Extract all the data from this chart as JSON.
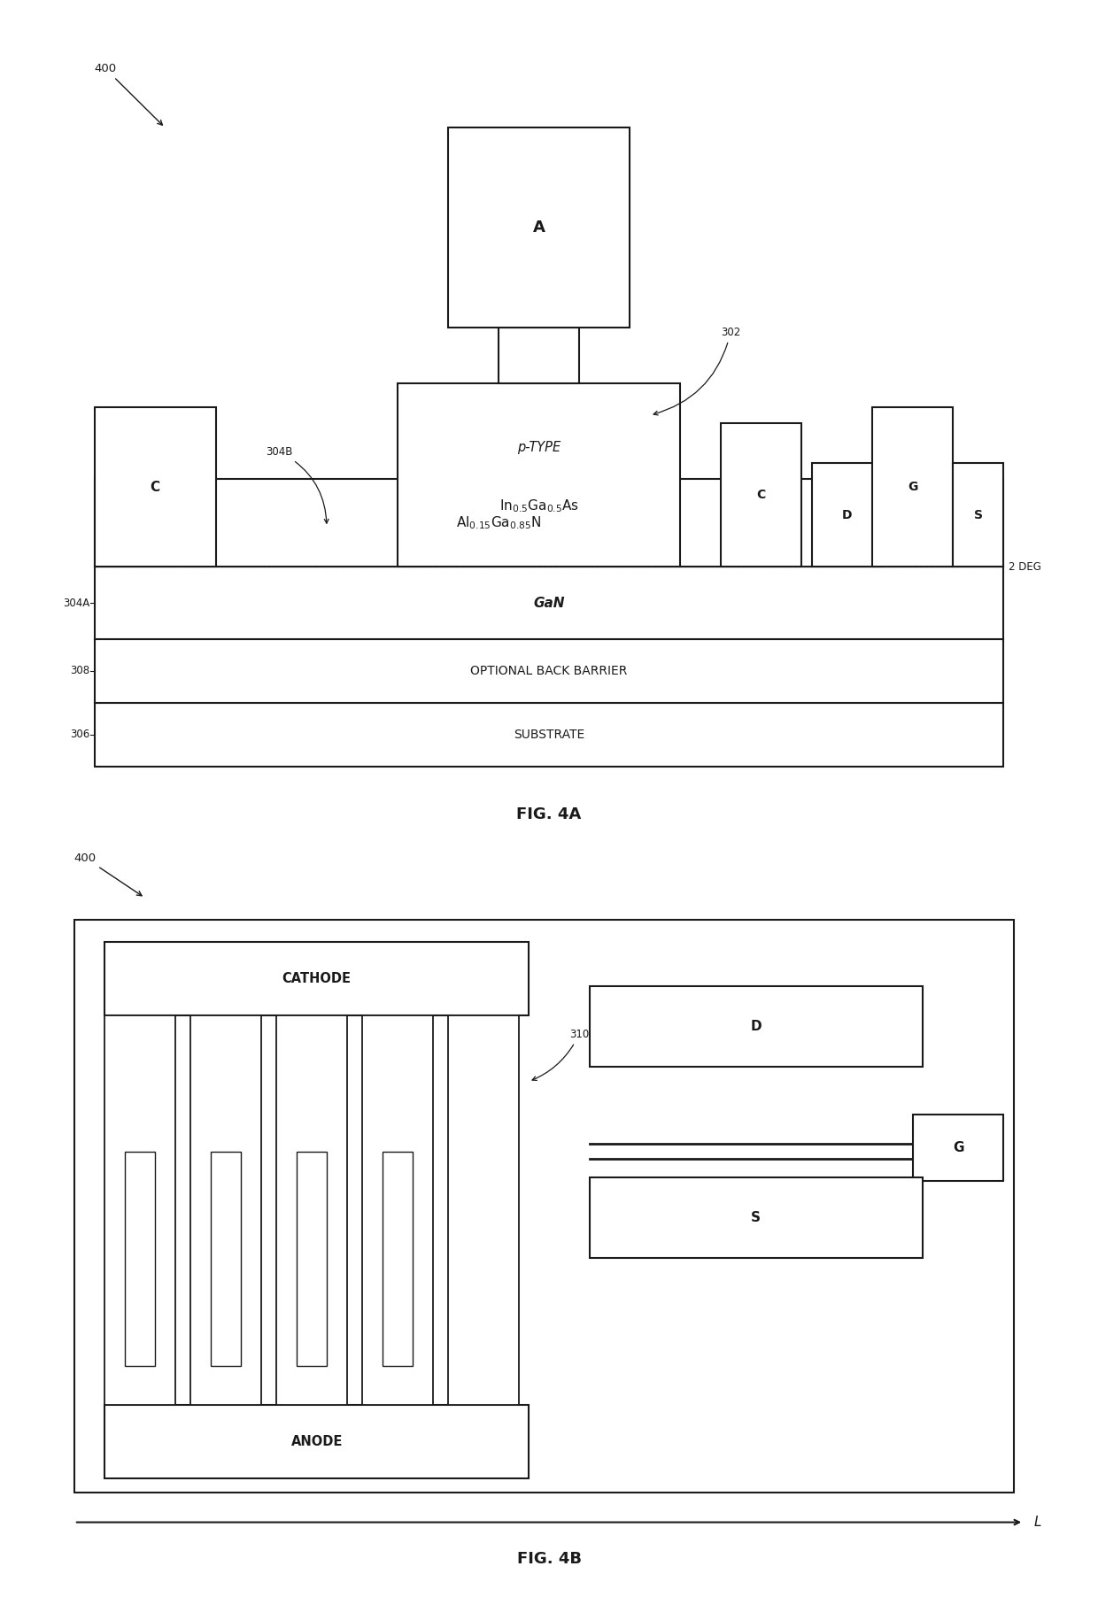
{
  "fig_width": 12.4,
  "fig_height": 18.04,
  "bg_color": "#ffffff",
  "line_color": "#1a1a1a",
  "fig4a": {
    "title": "FIG. 4A",
    "label_400": "400",
    "label_302": "302",
    "label_304B": "304B",
    "label_304A": "304A",
    "label_308": "308",
    "label_306": "306",
    "label_2DEG": "2 DEG",
    "text_A": "A",
    "text_ptype": "p-TYPE",
    "text_GaN": "GaN",
    "text_OBB": "OPTIONAL BACK BARRIER",
    "text_SUB": "SUBSTRATE",
    "text_C_left": "C",
    "text_C_right": "C",
    "text_D": "D",
    "text_G": "G",
    "text_S": "S"
  },
  "fig4b": {
    "title": "FIG. 4B",
    "label_400": "400",
    "label_310": "310",
    "label_L": "L",
    "text_CATHODE": "CATHODE",
    "text_ANODE": "ANODE",
    "text_D": "D",
    "text_G": "G",
    "text_S": "S"
  }
}
